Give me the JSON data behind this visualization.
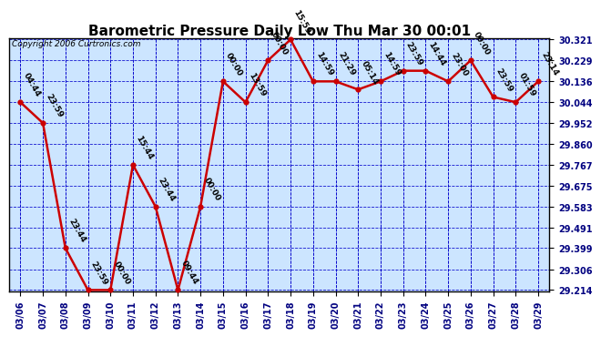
{
  "title": "Barometric Pressure Daily Low Thu Mar 30 00:01",
  "copyright": "Copyright 2006 Curtronics.com",
  "background_color": "#ffffff",
  "plot_background": "#cce5ff",
  "grid_color": "#0000cc",
  "line_color": "#cc0000",
  "marker_color": "#cc0000",
  "x_labels": [
    "03/06",
    "03/07",
    "03/08",
    "03/09",
    "03/10",
    "03/11",
    "03/12",
    "03/13",
    "03/14",
    "03/15",
    "03/16",
    "03/17",
    "03/18",
    "03/19",
    "03/20",
    "03/21",
    "03/22",
    "03/23",
    "03/24",
    "03/25",
    "03/26",
    "03/27",
    "03/28",
    "03/29"
  ],
  "y_values": [
    30.044,
    29.952,
    29.399,
    29.214,
    29.214,
    29.767,
    29.583,
    29.214,
    29.583,
    30.136,
    30.044,
    30.229,
    30.321,
    30.136,
    30.136,
    30.1,
    30.136,
    30.183,
    30.183,
    30.136,
    30.229,
    30.067,
    30.044,
    30.136
  ],
  "annotations": [
    "04:44",
    "23:59",
    "23:44",
    "23:59",
    "00:00",
    "15:44",
    "23:44",
    "09:44",
    "00:00",
    "00:00",
    "13:59",
    "00:00",
    "15:59",
    "14:59",
    "21:29",
    "05:14",
    "14:59",
    "23:59",
    "14:44",
    "23:00",
    "00:00",
    "23:59",
    "01:59",
    "23:14"
  ],
  "ylim_min": 29.214,
  "ylim_max": 30.321,
  "ytick_values": [
    29.214,
    29.306,
    29.399,
    29.491,
    29.583,
    29.675,
    29.767,
    29.86,
    29.952,
    30.044,
    30.136,
    30.229,
    30.321
  ],
  "title_fontsize": 11,
  "tick_fontsize": 7,
  "annotation_fontsize": 6.5,
  "copyright_fontsize": 6.5
}
